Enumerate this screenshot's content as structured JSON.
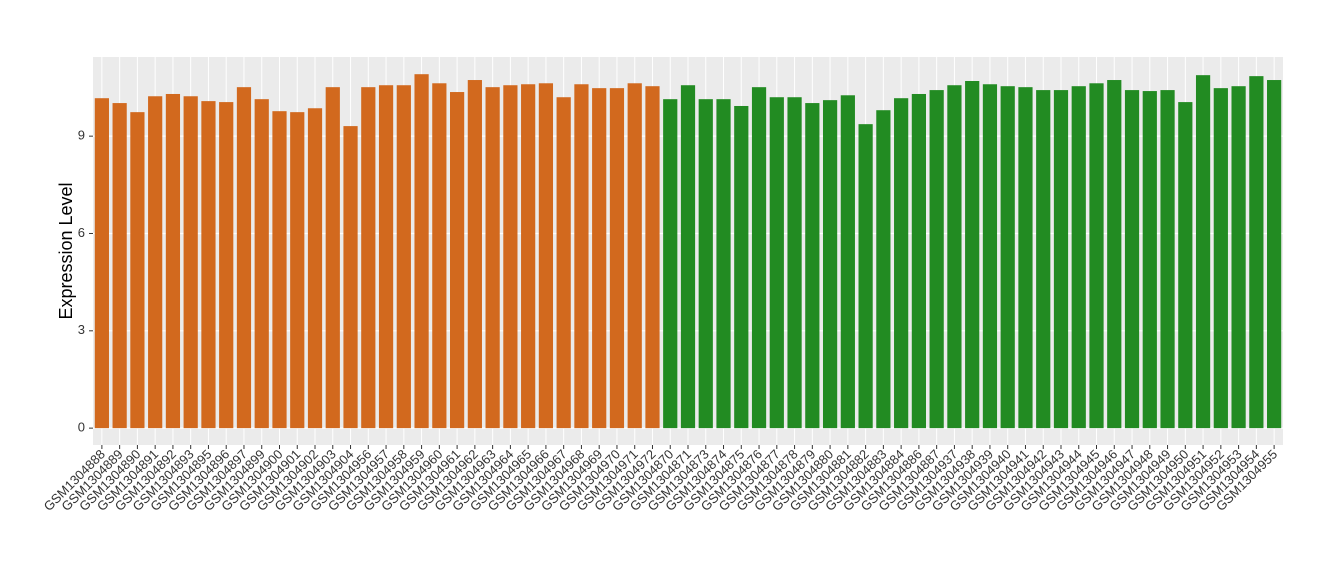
{
  "chart_data": {
    "type": "bar",
    "y_label": "Expression Level",
    "categories": [
      "GSM1304888",
      "GSM1304889",
      "GSM1304890",
      "GSM1304891",
      "GSM1304892",
      "GSM1304893",
      "GSM1304895",
      "GSM1304896",
      "GSM1304897",
      "GSM1304899",
      "GSM1304900",
      "GSM1304901",
      "GSM1304902",
      "GSM1304903",
      "GSM1304904",
      "GSM1304956",
      "GSM1304957",
      "GSM1304958",
      "GSM1304959",
      "GSM1304960",
      "GSM1304961",
      "GSM1304962",
      "GSM1304963",
      "GSM1304964",
      "GSM1304965",
      "GSM1304966",
      "GSM1304967",
      "GSM1304968",
      "GSM1304969",
      "GSM1304970",
      "GSM1304971",
      "GSM1304972",
      "GSM1304870",
      "GSM1304871",
      "GSM1304873",
      "GSM1304874",
      "GSM1304875",
      "GSM1304876",
      "GSM1304877",
      "GSM1304878",
      "GSM1304879",
      "GSM1304880",
      "GSM1304881",
      "GSM1304882",
      "GSM1304883",
      "GSM1304884",
      "GSM1304886",
      "GSM1304887",
      "GSM1304937",
      "GSM1304938",
      "GSM1304939",
      "GSM1304940",
      "GSM1304941",
      "GSM1304942",
      "GSM1304943",
      "GSM1304944",
      "GSM1304945",
      "GSM1304946",
      "GSM1304947",
      "GSM1304948",
      "GSM1304949",
      "GSM1304950",
      "GSM1304951",
      "GSM1304952",
      "GSM1304953",
      "GSM1304954",
      "GSM1304955"
    ],
    "values": [
      10.17,
      10.02,
      9.74,
      10.23,
      10.3,
      10.23,
      10.08,
      10.05,
      10.51,
      10.14,
      9.77,
      9.74,
      9.86,
      10.51,
      9.31,
      10.51,
      10.57,
      10.57,
      10.91,
      10.63,
      10.36,
      10.73,
      10.51,
      10.57,
      10.6,
      10.63,
      10.2,
      10.6,
      10.48,
      10.48,
      10.63,
      10.54,
      10.14,
      10.57,
      10.14,
      10.14,
      9.93,
      10.51,
      10.2,
      10.2,
      10.02,
      10.11,
      10.26,
      9.37,
      9.8,
      10.17,
      10.3,
      10.42,
      10.57,
      10.7,
      10.6,
      10.54,
      10.51,
      10.42,
      10.42,
      10.54,
      10.63,
      10.73,
      10.42,
      10.39,
      10.42,
      10.05,
      10.88,
      10.48,
      10.54,
      10.85,
      10.73
    ],
    "colors": [
      "#d2691e",
      "#d2691e",
      "#d2691e",
      "#d2691e",
      "#d2691e",
      "#d2691e",
      "#d2691e",
      "#d2691e",
      "#d2691e",
      "#d2691e",
      "#d2691e",
      "#d2691e",
      "#d2691e",
      "#d2691e",
      "#d2691e",
      "#d2691e",
      "#d2691e",
      "#d2691e",
      "#d2691e",
      "#d2691e",
      "#d2691e",
      "#d2691e",
      "#d2691e",
      "#d2691e",
      "#d2691e",
      "#d2691e",
      "#d2691e",
      "#d2691e",
      "#d2691e",
      "#d2691e",
      "#d2691e",
      "#d2691e",
      "#228b22",
      "#228b22",
      "#228b22",
      "#228b22",
      "#228b22",
      "#228b22",
      "#228b22",
      "#228b22",
      "#228b22",
      "#228b22",
      "#228b22",
      "#228b22",
      "#228b22",
      "#228b22",
      "#228b22",
      "#228b22",
      "#228b22",
      "#228b22",
      "#228b22",
      "#228b22",
      "#228b22",
      "#228b22",
      "#228b22",
      "#228b22",
      "#228b22",
      "#228b22",
      "#228b22",
      "#228b22",
      "#228b22",
      "#228b22",
      "#228b22",
      "#228b22",
      "#228b22",
      "#228b22",
      "#228b22"
    ],
    "ylim": [
      -0.52,
      11.44
    ],
    "yticks": [
      0,
      3,
      6,
      9
    ],
    "grid": true
  }
}
